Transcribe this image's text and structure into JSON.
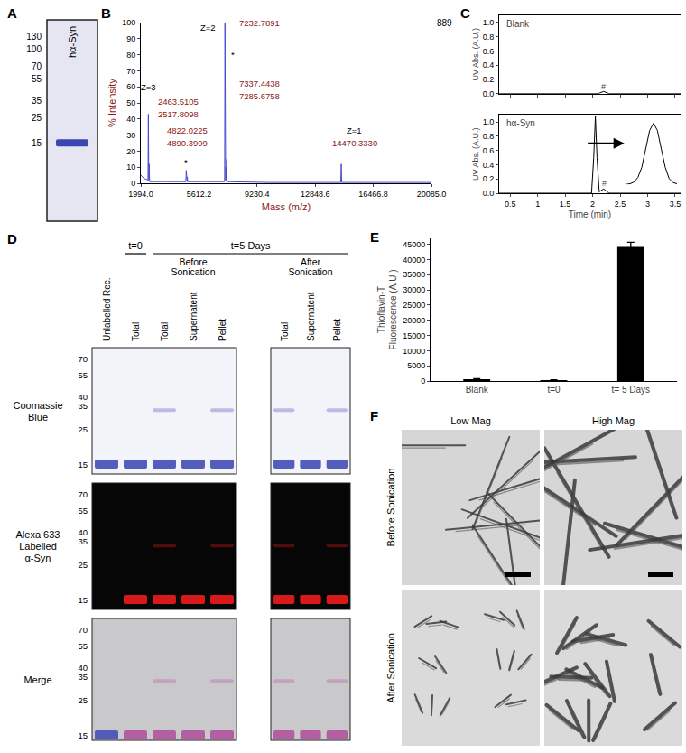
{
  "panel_A": {
    "panel": "A",
    "lanes": [
      "hα-Syn"
    ],
    "markers": [
      130,
      100,
      70,
      55,
      35,
      25,
      15
    ],
    "bands": [
      15
    ]
  },
  "chart_data": [
    {
      "panel": "B",
      "type": "line",
      "color": "#4a4ad0",
      "x": [
        1994,
        2200,
        2440,
        2463.5105,
        2490,
        2505,
        2517.8098,
        2540,
        3500,
        4800,
        4822.0225,
        4845,
        4875,
        4890.3999,
        4910,
        6000,
        7210,
        7232.7891,
        7255,
        7275,
        7285.6758,
        7300,
        7325,
        7337.4438,
        7350,
        10000,
        14440,
        14470.333,
        14500,
        20085
      ],
      "values": [
        5,
        3,
        2,
        43,
        2,
        2,
        12,
        1,
        1,
        1,
        8,
        1,
        1,
        4,
        1,
        1,
        1,
        100,
        2,
        2,
        10,
        2,
        2,
        15,
        1,
        0.5,
        0.5,
        12,
        0.5,
        0.5
      ],
      "xlabel": "Mass (m/z)",
      "ylabel": "% Intensity",
      "xlim": [
        1994,
        20085
      ],
      "xticks": [
        {
          "value": 1994,
          "label": "1994.0"
        },
        5612.2,
        9230.4,
        12848.6,
        16466.8,
        {
          "value": 20085,
          "label": "20085.0"
        }
      ],
      "ylim": [
        0,
        100
      ],
      "yticks": [
        0,
        10,
        20,
        30,
        40,
        50,
        60,
        70,
        80,
        90,
        100
      ],
      "grid": false,
      "max_count": 889,
      "annotations": [
        {
          "text": "Z=3",
          "x": 2463.5105,
          "y": 60
        },
        {
          "text": "2463.5105",
          "x": 4300,
          "y": 51
        },
        {
          "text": "2517.8098",
          "x": 4300,
          "y": 43
        },
        {
          "text": "*",
          "x": 4822.0225,
          "y": 13
        },
        {
          "text": "4822.0225",
          "x": 4900,
          "y": 33
        },
        {
          "text": "4890.3999",
          "x": 4900,
          "y": 25
        },
        {
          "text": "Z=2",
          "x": 6200,
          "y": 97
        },
        {
          "text": "7232.7891",
          "x": 9400,
          "y": 100
        },
        {
          "text": "*",
          "x": 7700,
          "y": 80
        },
        {
          "text": "7337.4438",
          "x": 9400,
          "y": 62
        },
        {
          "text": "7285.6758",
          "x": 9400,
          "y": 54
        },
        {
          "text": "Z=1",
          "x": 15300,
          "y": 33
        },
        {
          "text": "14470.3330",
          "x": 15300,
          "y": 25
        }
      ]
    },
    {
      "panel": "C",
      "type": "line",
      "color": "#000000",
      "xlabel": "Time (min)",
      "ylabel": "UV Abs. (A.U.)",
      "xlim": [
        0.3,
        3.6
      ],
      "xticks": [
        0.5,
        1,
        1.5,
        2,
        2.5,
        3,
        3.5
      ],
      "ylim": [
        0,
        1.1
      ],
      "yticks": [
        {
          "value": 0,
          "label": "0.0"
        },
        0.2,
        0.4,
        0.6,
        0.8,
        {
          "value": 1,
          "label": "1.0"
        }
      ],
      "grid": false,
      "subplots": [
        {
          "title": "Blank",
          "x": [
            0.3,
            2.1,
            2.2,
            2.3,
            3.6
          ],
          "values": [
            0,
            0,
            0.03,
            0,
            0
          ],
          "annotations": [
            {
              "text": "#",
              "x": 2.2,
              "y": 0.1
            }
          ]
        },
        {
          "title": "hα-Syn",
          "x": [
            0.3,
            1.98,
            2.02,
            2.05,
            2.08,
            2.12,
            2.2,
            2.25,
            2.3,
            3.6
          ],
          "values": [
            0,
            0,
            0.5,
            1.08,
            0.5,
            0.02,
            0.06,
            0.03,
            0,
            0
          ],
          "annotations": [
            {
              "text": "#",
              "x": 2.22,
              "y": 0.14
            }
          ],
          "inset": {
            "x": [
              1.99,
              2.0,
              2.01,
              2.02,
              2.03,
              2.04,
              2.05,
              2.06,
              2.07,
              2.08,
              2.09,
              2.1,
              2.11,
              2.12
            ],
            "values": [
              0,
              0.01,
              0.04,
              0.12,
              0.3,
              0.6,
              0.95,
              1.08,
              0.95,
              0.62,
              0.3,
              0.1,
              0.03,
              0.01
            ],
            "xlim": [
              1.99,
              2.12
            ],
            "ylim": [
              0,
              1.1
            ]
          }
        }
      ]
    },
    {
      "panel": "E",
      "type": "bar",
      "color": "#000000",
      "categories": [
        "Blank",
        "t=0",
        "t= 5 Days"
      ],
      "values": [
        600,
        300,
        44200
      ],
      "errors": [
        150,
        100,
        1500
      ],
      "ylabel": [
        "Thioflavin-T",
        "Fluorescence (A.U.)"
      ],
      "ylim": [
        0,
        47000
      ],
      "yticks": [
        0,
        5000,
        10000,
        15000,
        20000,
        25000,
        30000,
        35000,
        40000,
        45000
      ],
      "grid": false
    }
  ],
  "panel_D": {
    "panel": "D",
    "lanes": [
      {
        "label": "Unlabelled Rec.",
        "labelled": false,
        "bands": [
          15
        ]
      },
      {
        "label": "Total",
        "labelled": true,
        "bands": [
          15
        ]
      },
      {
        "label": "Total",
        "labelled": true,
        "bands": [
          15,
          33
        ]
      },
      {
        "label": "Supernatent",
        "labelled": true,
        "bands": [
          15
        ]
      },
      {
        "label": "Pellet",
        "labelled": true,
        "bands": [
          15,
          33
        ]
      },
      {
        "label": "Total",
        "labelled": true,
        "bands": [
          15,
          33
        ]
      },
      {
        "label": "Supernatent",
        "labelled": true,
        "bands": [
          15
        ]
      },
      {
        "label": "Pellet",
        "labelled": true,
        "bands": [
          15,
          33
        ]
      }
    ],
    "groups": [
      {
        "label": "t=0",
        "lanes": [
          1
        ]
      },
      {
        "label": "t=5 Days",
        "lanes": [
          2,
          3,
          4,
          5,
          6,
          7
        ]
      }
    ],
    "subgroups": [
      {
        "label": "Before Sonication",
        "lanes": [
          2,
          3,
          4
        ]
      },
      {
        "label": "After Sonication",
        "lanes": [
          5,
          6,
          7
        ]
      }
    ],
    "rows": [
      "Coomassie Blue",
      "Alexa 633 Labelled α-Syn",
      "Merge"
    ],
    "markers": [
      70,
      55,
      40,
      35,
      25,
      15
    ]
  },
  "panel_F": {
    "panel": "F",
    "columns": [
      "Low Mag",
      "High Mag"
    ],
    "rows": [
      "Before Sonication",
      "After Sonication"
    ]
  }
}
